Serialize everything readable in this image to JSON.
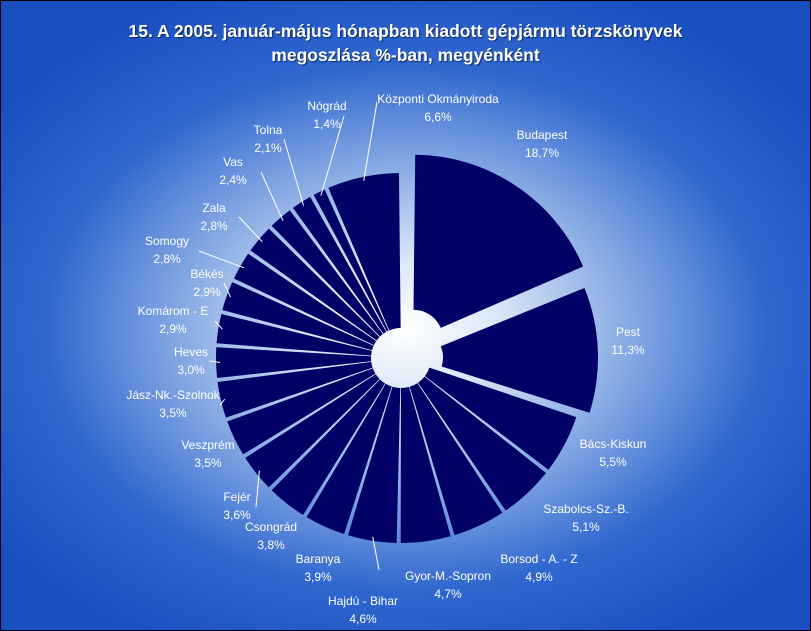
{
  "chart_data": {
    "type": "pie",
    "title_lines": [
      "15. A  2005. január-május hónapban kiadott gépjármu törzskönyvek",
      "megoszlása %-ban, megyénként"
    ],
    "slices": [
      {
        "name": "Budapest",
        "label": "18,7%",
        "value": 18.7
      },
      {
        "name": "Pest",
        "label": "11,3%",
        "value": 11.3
      },
      {
        "name": "Bács-Kiskun",
        "label": "5,5%",
        "value": 5.5
      },
      {
        "name": "Szabolcs-Sz.-B.",
        "label": "5,1%",
        "value": 5.1
      },
      {
        "name": "Borsod - A. - Z",
        "label": "4,9%",
        "value": 4.9
      },
      {
        "name": "Gyor-M.-Sopron",
        "label": "4,7%",
        "value": 4.7
      },
      {
        "name": "Hajdú - Bihar",
        "label": "4,6%",
        "value": 4.6
      },
      {
        "name": "Baranya",
        "label": "3,9%",
        "value": 3.9
      },
      {
        "name": "Csongrád",
        "label": "3,8%",
        "value": 3.8
      },
      {
        "name": "Fejér",
        "label": "3,6%",
        "value": 3.6
      },
      {
        "name": "Veszprém",
        "label": "3,5%",
        "value": 3.5
      },
      {
        "name": "Jász-Nk.-Szolnok",
        "label": "3,5%",
        "value": 3.5
      },
      {
        "name": "Heves",
        "label": "3,0%",
        "value": 3.0
      },
      {
        "name": "Komárom - E",
        "label": "2,9%",
        "value": 2.9
      },
      {
        "name": "Békés",
        "label": "2,9%",
        "value": 2.9
      },
      {
        "name": "Somogy",
        "label": "2,8%",
        "value": 2.8
      },
      {
        "name": "Zala",
        "label": "2,8%",
        "value": 2.8
      },
      {
        "name": "Vas",
        "label": "2,4%",
        "value": 2.4
      },
      {
        "name": "Tolna",
        "label": "2,1%",
        "value": 2.1
      },
      {
        "name": "Nógrád",
        "label": "1,4%",
        "value": 1.4
      },
      {
        "name": "Központi Okmányiroda",
        "label": "6,6%",
        "value": 6.6
      }
    ],
    "colors": {
      "slice": "#000066",
      "text": "#ffffff"
    }
  }
}
